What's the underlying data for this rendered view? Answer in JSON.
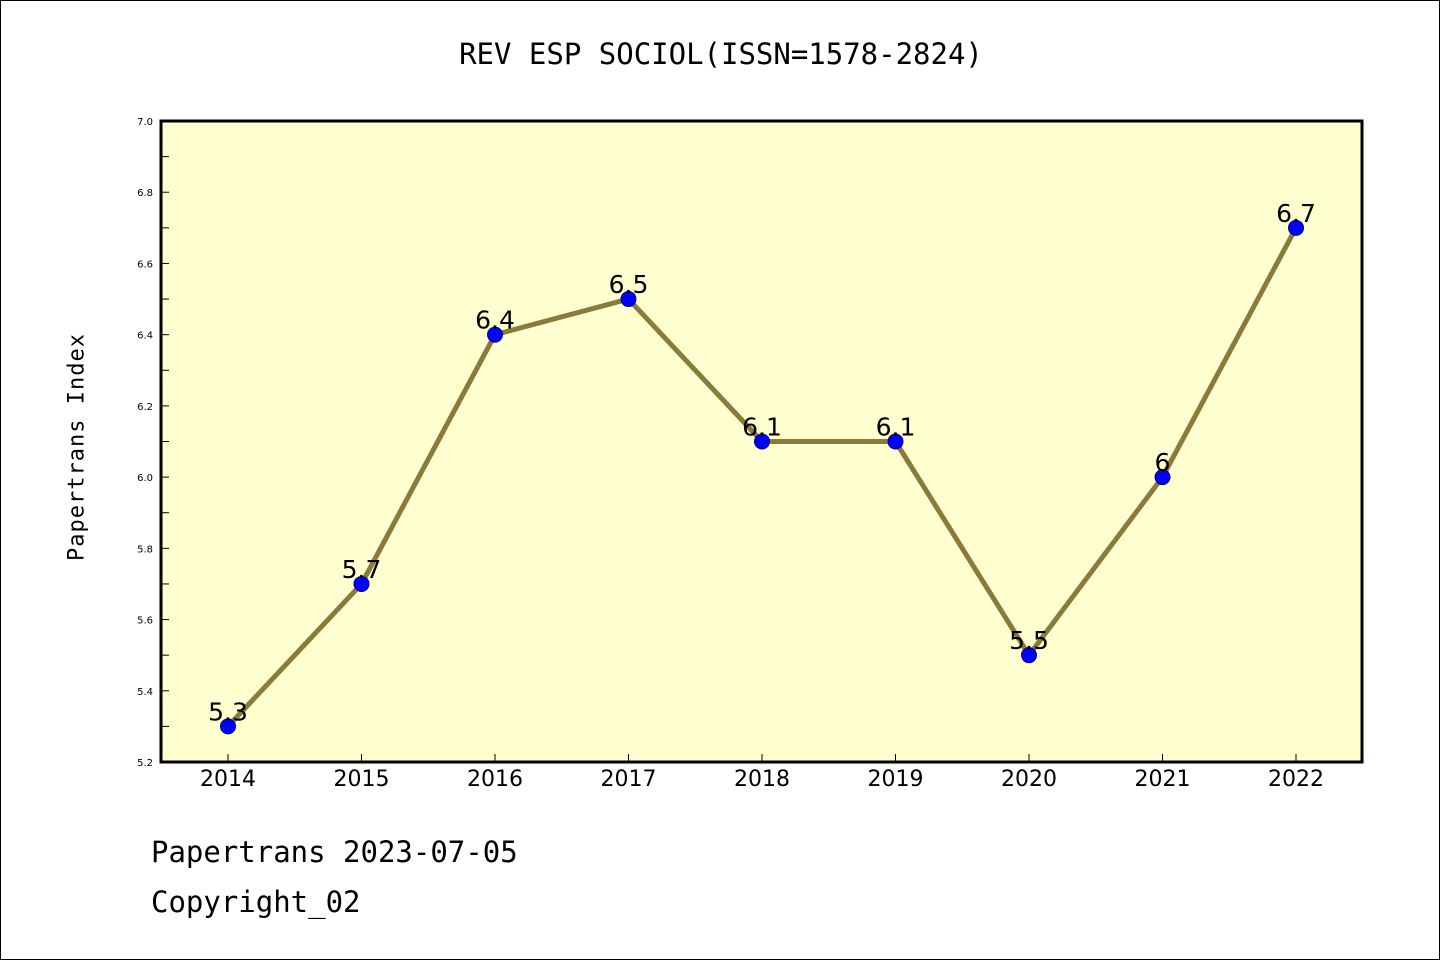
{
  "chart_data": {
    "type": "line",
    "title": "REV ESP SOCIOL(ISSN=1578-2824)",
    "xlabel": "",
    "ylabel": "Papertrans Index",
    "categories": [
      "2014",
      "2015",
      "2016",
      "2017",
      "2018",
      "2019",
      "2020",
      "2021",
      "2022"
    ],
    "series": [
      {
        "values": [
          5.3,
          5.7,
          6.4,
          6.5,
          6.1,
          6.1,
          5.5,
          6.0,
          6.7
        ],
        "data_labels": [
          "5.3",
          "5.7",
          "6.4",
          "6.5",
          "6.1",
          "6.1",
          "5.5",
          "6",
          "6.7"
        ]
      }
    ],
    "ylim": [
      5.2,
      7.0
    ],
    "y_ticks": [
      "5.2",
      "5.4",
      "5.6",
      "5.8",
      "6.0",
      "6.2",
      "6.4",
      "6.6",
      "6.8",
      "7.0"
    ],
    "grid": false,
    "colors": {
      "plot_background": "#FFFFD0",
      "line": "#8B7B3A",
      "marker": "#0000FF"
    }
  },
  "footer": {
    "date_text": "Papertrans 2023-07-05",
    "copyright_text": "Copyright_02"
  }
}
